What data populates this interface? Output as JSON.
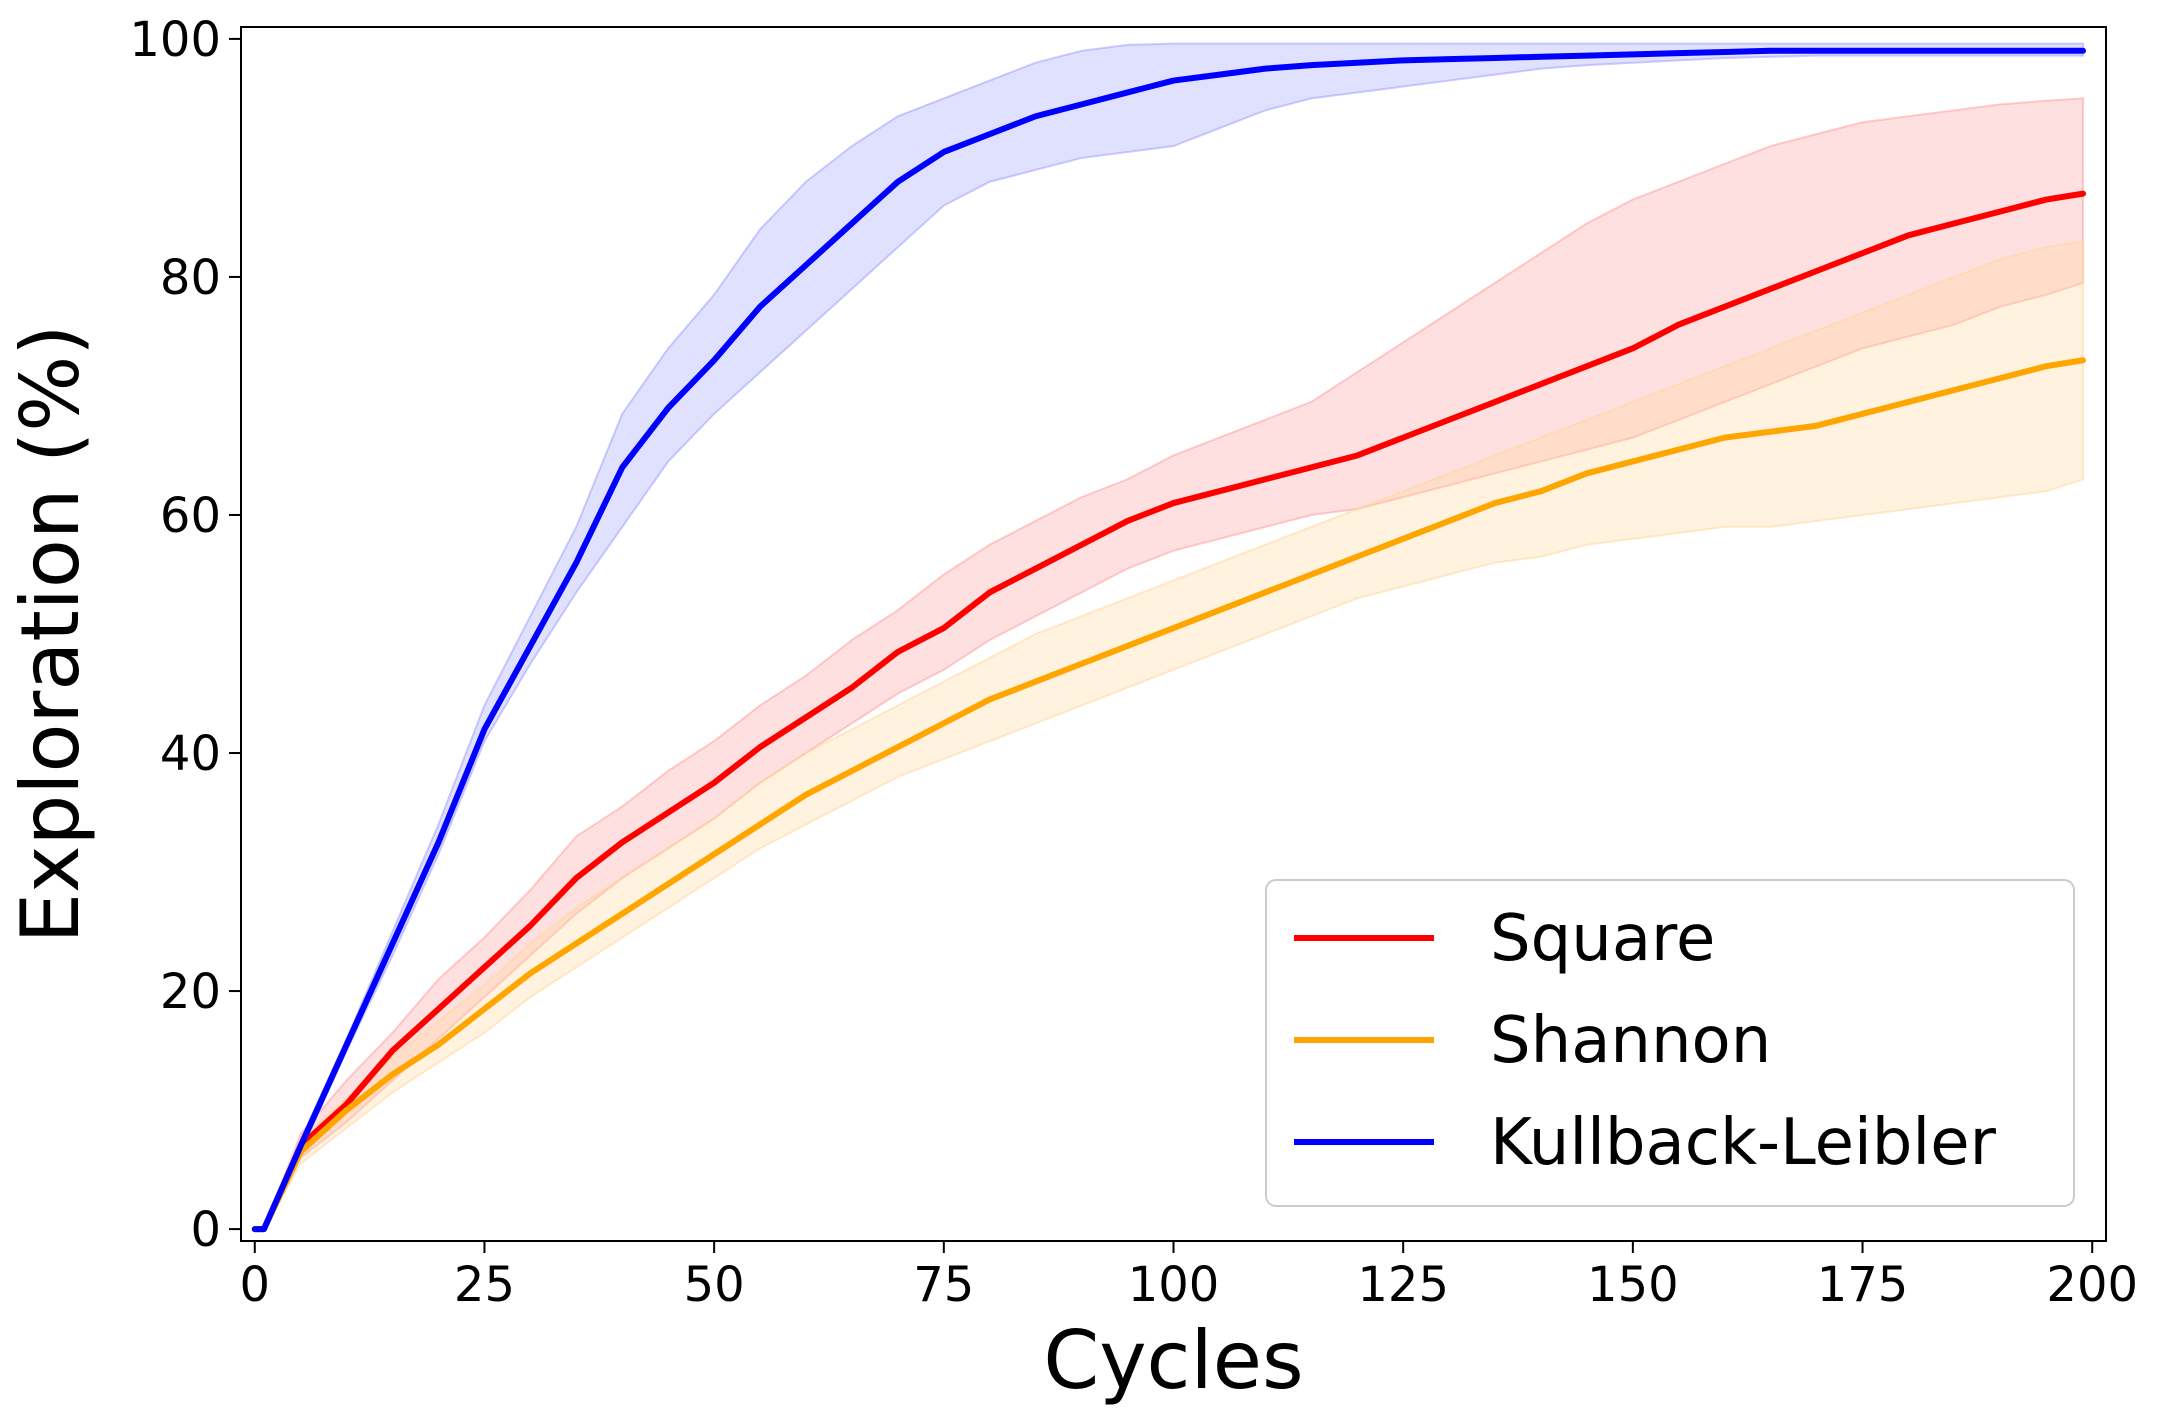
{
  "chart_data": {
    "type": "line",
    "title": "",
    "xlabel": "Cycles",
    "ylabel": "Exploration (%)",
    "xlim": [
      -1.5,
      201.5
    ],
    "ylim": [
      -1,
      101
    ],
    "xticks": [
      0,
      25,
      50,
      75,
      100,
      125,
      150,
      175,
      200
    ],
    "yticks": [
      0,
      20,
      40,
      60,
      80,
      100
    ],
    "xtick_labels": [
      "0",
      "25",
      "50",
      "75",
      "100",
      "125",
      "150",
      "175",
      "200"
    ],
    "ytick_labels": [
      "0",
      "20",
      "40",
      "60",
      "80",
      "100"
    ],
    "grid": false,
    "legend_position": "lower-right",
    "x": [
      0,
      1,
      5,
      10,
      15,
      20,
      25,
      30,
      35,
      40,
      45,
      50,
      55,
      60,
      65,
      70,
      75,
      80,
      85,
      90,
      95,
      100,
      105,
      110,
      115,
      120,
      125,
      130,
      135,
      140,
      145,
      150,
      155,
      160,
      165,
      170,
      175,
      180,
      185,
      190,
      195,
      199
    ],
    "series": [
      {
        "name": "Square",
        "color": "#ff0000",
        "band_color": "#ff9999",
        "values": [
          0,
          0,
          7,
          10.5,
          15,
          18.5,
          22,
          25.5,
          29.5,
          32.5,
          35,
          37.5,
          40.5,
          43,
          45.5,
          48.5,
          50.5,
          53.5,
          55.5,
          57.5,
          59.5,
          61,
          62,
          63,
          64,
          65,
          66.5,
          68,
          69.5,
          71,
          72.5,
          74,
          76,
          77.5,
          79,
          80.5,
          82,
          83.5,
          84.5,
          85.5,
          86.5,
          87
        ],
        "lower": [
          0,
          0,
          6,
          9,
          12.5,
          16,
          19.5,
          23,
          26.5,
          29.5,
          32,
          34.5,
          37.5,
          40,
          42.5,
          45,
          47,
          49.5,
          51.5,
          53.5,
          55.5,
          57,
          58,
          59,
          60,
          60.5,
          61.5,
          62.5,
          63.5,
          64.5,
          65.5,
          66.5,
          68,
          69.5,
          71,
          72.5,
          74,
          75,
          76,
          77.5,
          78.5,
          79.5
        ],
        "upper": [
          0,
          0,
          8,
          12.5,
          16.5,
          21,
          24.5,
          28.5,
          33,
          35.5,
          38.5,
          41,
          44,
          46.5,
          49.5,
          52,
          55,
          57.5,
          59.5,
          61.5,
          63,
          65,
          66.5,
          68,
          69.5,
          72,
          74.5,
          77,
          79.5,
          82,
          84.5,
          86.5,
          88,
          89.5,
          91,
          92,
          93,
          93.5,
          94,
          94.5,
          94.8,
          95
        ]
      },
      {
        "name": "Shannon",
        "color": "#ffa500",
        "band_color": "#ffd699",
        "values": [
          0,
          0,
          6.5,
          10,
          13,
          15.5,
          18.5,
          21.5,
          24,
          26.5,
          29,
          31.5,
          34,
          36.5,
          38.5,
          40.5,
          42.5,
          44.5,
          46,
          47.5,
          49,
          50.5,
          52,
          53.5,
          55,
          56.5,
          58,
          59.5,
          61,
          62,
          63.5,
          64.5,
          65.5,
          66.5,
          67,
          67.5,
          68.5,
          69.5,
          70.5,
          71.5,
          72.5,
          73
        ],
        "lower": [
          0,
          0,
          5.5,
          8.5,
          11.5,
          14,
          16.5,
          19.5,
          22,
          24.5,
          27,
          29.5,
          32,
          34,
          36,
          38,
          39.5,
          41,
          42.5,
          44,
          45.5,
          47,
          48.5,
          50,
          51.5,
          53,
          54,
          55,
          56,
          56.5,
          57.5,
          58,
          58.5,
          59,
          59,
          59.5,
          60,
          60.5,
          61,
          61.5,
          62,
          63
        ],
        "upper": [
          0,
          0,
          7.5,
          11,
          14.5,
          17.5,
          20.5,
          24,
          27,
          29.5,
          32,
          34.5,
          37.5,
          40,
          42,
          44,
          46,
          48,
          50,
          51.5,
          53,
          54.5,
          56,
          57.5,
          59,
          60.5,
          62,
          63.5,
          65,
          66.5,
          68,
          69.5,
          71,
          72.5,
          74,
          75.5,
          77,
          78.5,
          80,
          81.5,
          82.5,
          83
        ]
      },
      {
        "name": "Kullback-Leibler",
        "color": "#0000ff",
        "band_color": "#9999ff",
        "values": [
          0,
          0,
          7,
          15.5,
          24,
          32.5,
          42,
          49,
          56,
          64,
          69,
          73,
          77.5,
          81,
          84.5,
          88,
          90.5,
          92,
          93.5,
          94.5,
          95.5,
          96.5,
          97,
          97.5,
          97.8,
          98,
          98.2,
          98.3,
          98.4,
          98.5,
          98.6,
          98.7,
          98.8,
          98.9,
          99,
          99,
          99,
          99,
          99,
          99,
          99,
          99
        ],
        "lower": [
          0,
          0,
          6.5,
          15,
          23,
          31.5,
          41,
          47.5,
          53.5,
          59,
          64.5,
          68.5,
          72,
          75.5,
          79,
          82.5,
          86,
          88,
          89,
          90,
          90.5,
          91,
          92.5,
          94,
          95,
          95.5,
          96,
          96.5,
          97,
          97.5,
          97.8,
          98,
          98.2,
          98.4,
          98.5,
          98.6,
          98.6,
          98.6,
          98.6,
          98.6,
          98.6,
          98.6
        ],
        "upper": [
          0,
          0,
          7.5,
          16,
          25,
          34,
          44,
          51.5,
          59,
          68.5,
          74,
          78.5,
          84,
          88,
          91,
          93.5,
          95,
          96.5,
          98,
          99,
          99.5,
          99.6,
          99.6,
          99.6,
          99.6,
          99.6,
          99.6,
          99.6,
          99.6,
          99.6,
          99.6,
          99.6,
          99.6,
          99.6,
          99.6,
          99.6,
          99.6,
          99.6,
          99.6,
          99.6,
          99.6,
          99.6
        ]
      }
    ]
  }
}
